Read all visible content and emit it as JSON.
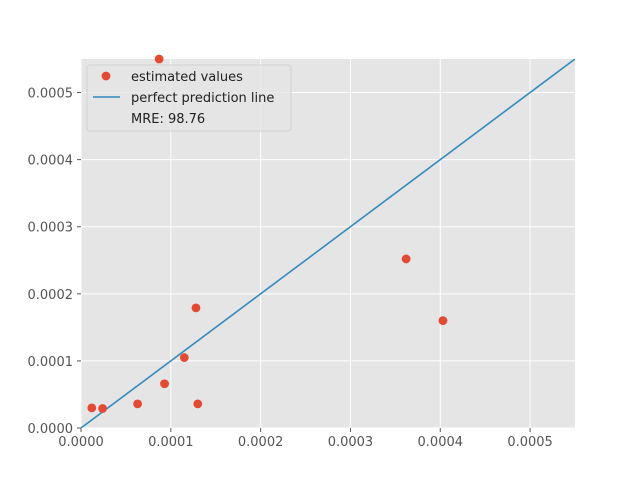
{
  "chart_data": {
    "type": "scatter",
    "title": "",
    "xlabel": "",
    "ylabel": "",
    "xlim": [
      0,
      0.00055
    ],
    "ylim": [
      0,
      0.00055
    ],
    "x_ticks": [
      "0.0000",
      "0.0001",
      "0.0002",
      "0.0003",
      "0.0004",
      "0.0005"
    ],
    "y_ticks": [
      "0.0000",
      "0.0001",
      "0.0002",
      "0.0003",
      "0.0004",
      "0.0005"
    ],
    "grid": true,
    "legend_position": "top-left",
    "legend": [
      {
        "label": "estimated values",
        "kind": "marker",
        "color": "#E24A33"
      },
      {
        "label": "perfect prediction line",
        "kind": "line",
        "color": "#348ABD"
      },
      {
        "label": "MRE: 98.76",
        "kind": "none"
      }
    ],
    "series": [
      {
        "name": "estimated values",
        "type": "scatter",
        "color": "#E24A33",
        "points": [
          {
            "x": 1.2e-05,
            "y": 3e-05
          },
          {
            "x": 2.4e-05,
            "y": 2.9e-05
          },
          {
            "x": 6.3e-05,
            "y": 3.6e-05
          },
          {
            "x": 9.3e-05,
            "y": 6.6e-05
          },
          {
            "x": 8.7e-05,
            "y": 0.00055
          },
          {
            "x": 0.000115,
            "y": 0.000105
          },
          {
            "x": 0.000128,
            "y": 0.000179
          },
          {
            "x": 0.00013,
            "y": 3.6e-05
          },
          {
            "x": 0.000362,
            "y": 0.000252
          },
          {
            "x": 0.000403,
            "y": 0.00016
          }
        ]
      },
      {
        "name": "perfect prediction line",
        "type": "line",
        "color": "#348ABD",
        "points": [
          {
            "x": 0,
            "y": 0
          },
          {
            "x": 0.00055,
            "y": 0.00055
          }
        ]
      }
    ]
  }
}
